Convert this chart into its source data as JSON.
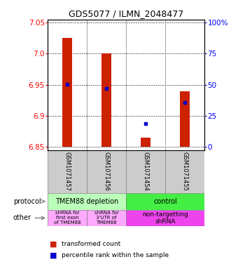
{
  "title": "GDS5077 / ILMN_2048477",
  "samples": [
    "GSM1071457",
    "GSM1071456",
    "GSM1071454",
    "GSM1071455"
  ],
  "bar_bottoms": [
    6.85,
    6.85,
    6.85,
    6.85
  ],
  "bar_tops": [
    7.025,
    7.0,
    6.865,
    6.94
  ],
  "blue_dots": [
    6.951,
    6.944,
    6.888,
    6.922
  ],
  "ylim": [
    6.845,
    7.055
  ],
  "yticks_left": [
    6.85,
    6.9,
    6.95,
    7.0,
    7.05
  ],
  "yticks_right_vals": [
    0,
    25,
    50,
    75,
    100
  ],
  "yticks_right_pos": [
    6.85,
    6.9,
    6.95,
    7.0,
    7.05
  ],
  "bar_color": "#cc2200",
  "dot_color": "#0000cc",
  "protocol_labels": [
    "TMEM88 depletion",
    "control"
  ],
  "protocol_colors": [
    "#bbffbb",
    "#44ee44"
  ],
  "other_labels": [
    "shRNA for\nfirst exon\nof TMEM88",
    "shRNA for\n3'UTR of\nTMEM88",
    "non-targetting\nshRNA"
  ],
  "other_colors": [
    "#ffaaff",
    "#ffaaff",
    "#ee44ee"
  ],
  "legend_red": "transformed count",
  "legend_blue": "percentile rank within the sample",
  "bar_width": 0.25
}
